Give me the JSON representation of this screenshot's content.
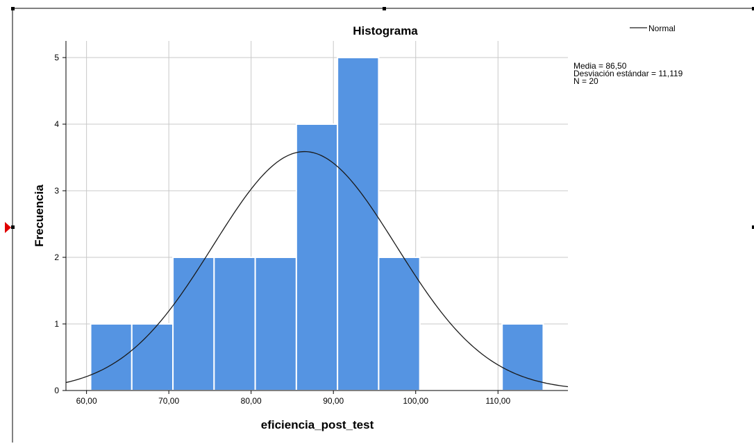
{
  "chart_data": {
    "type": "bar",
    "title": "Histograma",
    "xlabel": "eficiencia_post_test",
    "ylabel": "Frecuencia",
    "x_ticks": [
      60,
      70,
      80,
      90,
      100,
      110
    ],
    "x_tick_labels": [
      "60,00",
      "70,00",
      "80,00",
      "90,00",
      "100,00",
      "110,00"
    ],
    "y_ticks": [
      0,
      1,
      2,
      3,
      4,
      5
    ],
    "y_tick_labels": [
      "0",
      "1",
      "2",
      "3",
      "4",
      "5"
    ],
    "xlim": [
      57.5,
      118.5
    ],
    "ylim": [
      0,
      5.25
    ],
    "grid": true,
    "bins": [
      {
        "start": 60.5,
        "end": 65.5,
        "count": 1
      },
      {
        "start": 65.5,
        "end": 70.5,
        "count": 1
      },
      {
        "start": 70.5,
        "end": 75.5,
        "count": 2
      },
      {
        "start": 75.5,
        "end": 80.5,
        "count": 2
      },
      {
        "start": 80.5,
        "end": 85.5,
        "count": 2
      },
      {
        "start": 85.5,
        "end": 90.5,
        "count": 4
      },
      {
        "start": 90.5,
        "end": 95.5,
        "count": 5
      },
      {
        "start": 95.5,
        "end": 100.5,
        "count": 2
      },
      {
        "start": 100.5,
        "end": 105.5,
        "count": 0
      },
      {
        "start": 105.5,
        "end": 110.5,
        "count": 0
      },
      {
        "start": 110.5,
        "end": 115.5,
        "count": 1
      }
    ],
    "normal_curve": {
      "label": "Normal",
      "mean": 86.5,
      "sd": 11.119,
      "n": 20,
      "bin_width": 5
    },
    "stats_lines": [
      "Media = 86,50",
      "Desviación estándar = 11,119",
      "N = 20"
    ],
    "legend_position": "top-right",
    "bar_color": "#5594e2",
    "curve_color": "#1a1a1a"
  }
}
